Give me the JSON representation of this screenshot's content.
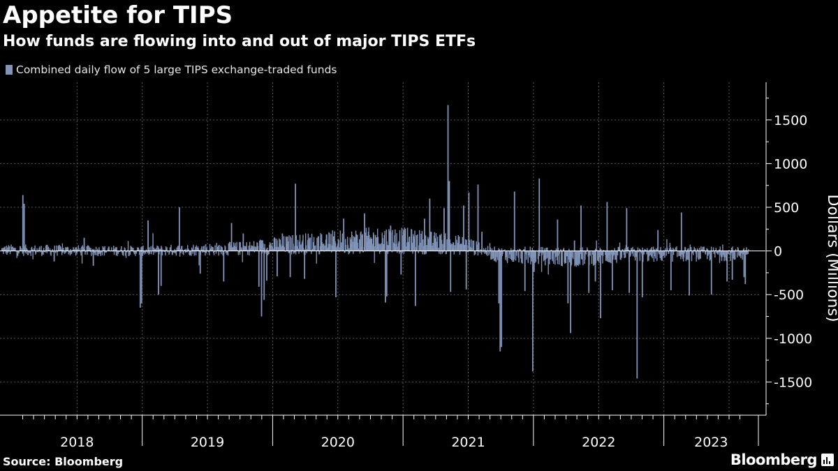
{
  "header": {
    "title": "Appetite for TIPS",
    "subtitle": "How funds are flowing into and out of major TIPS ETFs"
  },
  "footer": {
    "source": "Source: Bloomberg",
    "brand": "Bloomberg",
    "brand_icon": "bloomberg-chart-icon"
  },
  "chart_data": {
    "type": "bar",
    "legend_placement": "top-left",
    "grid": true,
    "ylabel": "Dollars (Millions)",
    "ylim": [
      -1880,
      1930
    ],
    "yticks": [
      1500,
      1000,
      500,
      0,
      -500,
      -1000,
      -1500
    ],
    "ytick_labels": [
      "1500",
      "1000",
      "500",
      "0",
      "-500",
      "-1000",
      "-1500"
    ],
    "xlim": [
      2017.92,
      2023.65
    ],
    "year_labels": [
      "2018",
      "2019",
      "2020",
      "2021",
      "2022",
      "2023"
    ],
    "bar_color": "#8295b8",
    "series": [
      {
        "name": "Combined daily flow of 5 large TIPS exchange-traded funds",
        "note": "Daily points sampled; baseline daily noise generated by script within approx ±150M around a slowly varying level; notable spikes listed",
        "baseline_levels": [
          {
            "x": 2017.92,
            "y": 10
          },
          {
            "x": 2019.0,
            "y": 0
          },
          {
            "x": 2019.8,
            "y": 30
          },
          {
            "x": 2020.2,
            "y": 80
          },
          {
            "x": 2020.9,
            "y": 130
          },
          {
            "x": 2021.5,
            "y": 60
          },
          {
            "x": 2021.7,
            "y": -40
          },
          {
            "x": 2022.3,
            "y": -70
          },
          {
            "x": 2022.8,
            "y": -40
          },
          {
            "x": 2023.6,
            "y": -30
          }
        ],
        "spikes": [
          {
            "x": 2018.08,
            "y": 640
          },
          {
            "x": 2018.09,
            "y": 540
          },
          {
            "x": 2018.32,
            "y": -120
          },
          {
            "x": 2018.55,
            "y": 150
          },
          {
            "x": 2018.62,
            "y": -170
          },
          {
            "x": 2018.98,
            "y": -650
          },
          {
            "x": 2018.99,
            "y": -600
          },
          {
            "x": 2019.04,
            "y": 350
          },
          {
            "x": 2019.12,
            "y": -500
          },
          {
            "x": 2019.14,
            "y": -400
          },
          {
            "x": 2019.28,
            "y": 500
          },
          {
            "x": 2019.44,
            "y": -260
          },
          {
            "x": 2019.62,
            "y": -350
          },
          {
            "x": 2019.68,
            "y": 320
          },
          {
            "x": 2019.77,
            "y": 200
          },
          {
            "x": 2019.89,
            "y": -410
          },
          {
            "x": 2019.91,
            "y": -750
          },
          {
            "x": 2019.93,
            "y": -560
          },
          {
            "x": 2019.95,
            "y": -340
          },
          {
            "x": 2020.03,
            "y": -290
          },
          {
            "x": 2020.07,
            "y": 200
          },
          {
            "x": 2020.13,
            "y": -300
          },
          {
            "x": 2020.17,
            "y": 770
          },
          {
            "x": 2020.24,
            "y": -320
          },
          {
            "x": 2020.48,
            "y": -530
          },
          {
            "x": 2020.54,
            "y": 370
          },
          {
            "x": 2020.7,
            "y": 430
          },
          {
            "x": 2020.86,
            "y": -590
          },
          {
            "x": 2020.87,
            "y": -520
          },
          {
            "x": 2020.9,
            "y": 290
          },
          {
            "x": 2020.98,
            "y": -270
          },
          {
            "x": 2021.09,
            "y": -630
          },
          {
            "x": 2021.16,
            "y": 370
          },
          {
            "x": 2021.2,
            "y": 600
          },
          {
            "x": 2021.31,
            "y": 490
          },
          {
            "x": 2021.34,
            "y": 1670
          },
          {
            "x": 2021.35,
            "y": 800
          },
          {
            "x": 2021.36,
            "y": -470
          },
          {
            "x": 2021.46,
            "y": 520
          },
          {
            "x": 2021.48,
            "y": -440
          },
          {
            "x": 2021.5,
            "y": 670
          },
          {
            "x": 2021.57,
            "y": 760
          },
          {
            "x": 2021.6,
            "y": 220
          },
          {
            "x": 2021.73,
            "y": -600
          },
          {
            "x": 2021.74,
            "y": -1150
          },
          {
            "x": 2021.75,
            "y": -1100
          },
          {
            "x": 2021.85,
            "y": 680
          },
          {
            "x": 2021.93,
            "y": -460
          },
          {
            "x": 2021.99,
            "y": -1380
          },
          {
            "x": 2022.0,
            "y": -240
          },
          {
            "x": 2022.04,
            "y": 830
          },
          {
            "x": 2022.18,
            "y": 360
          },
          {
            "x": 2022.26,
            "y": -600
          },
          {
            "x": 2022.28,
            "y": -940
          },
          {
            "x": 2022.31,
            "y": 120
          },
          {
            "x": 2022.36,
            "y": 520
          },
          {
            "x": 2022.42,
            "y": -480
          },
          {
            "x": 2022.47,
            "y": -350
          },
          {
            "x": 2022.51,
            "y": -770
          },
          {
            "x": 2022.56,
            "y": 560
          },
          {
            "x": 2022.6,
            "y": -450
          },
          {
            "x": 2022.71,
            "y": 490
          },
          {
            "x": 2022.73,
            "y": -480
          },
          {
            "x": 2022.79,
            "y": -1460
          },
          {
            "x": 2022.83,
            "y": -530
          },
          {
            "x": 2022.95,
            "y": 240
          },
          {
            "x": 2023.05,
            "y": -450
          },
          {
            "x": 2023.13,
            "y": 440
          },
          {
            "x": 2023.19,
            "y": -510
          },
          {
            "x": 2023.36,
            "y": -500
          },
          {
            "x": 2023.48,
            "y": -350
          },
          {
            "x": 2023.52,
            "y": -330
          },
          {
            "x": 2023.61,
            "y": -300
          },
          {
            "x": 2023.62,
            "y": -380
          }
        ]
      }
    ]
  }
}
